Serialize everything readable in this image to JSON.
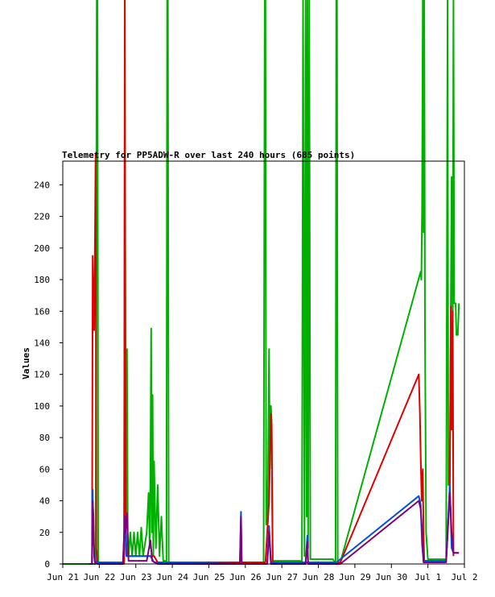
{
  "chart_data": {
    "type": "line",
    "title": "Telemetry for PP5ADW-R over last 240 hours (685 points)",
    "xlabel": "",
    "ylabel": "Values",
    "ylim": [
      0,
      255
    ],
    "y_ticks": [
      0,
      20,
      40,
      60,
      80,
      100,
      120,
      140,
      160,
      180,
      200,
      220,
      240
    ],
    "x_ticks": [
      "Jun 21",
      "Jun 22",
      "Jun 23",
      "Jun 24",
      "Jun 25",
      "Jun 26",
      "Jun 27",
      "Jun 28",
      "Jun 29",
      "Jun 30",
      "Jul 1",
      "Jul 2"
    ],
    "x_unit": "days since Jun 21 00:00",
    "xlim": [
      0,
      11
    ],
    "grid": false,
    "legend": "none",
    "series": [
      {
        "color": "#00b000",
        "points": [
          [
            0.0,
            0
          ],
          [
            0.85,
            0
          ],
          [
            0.9,
            0
          ],
          [
            0.93,
            400
          ],
          [
            0.95,
            400
          ],
          [
            0.97,
            0
          ],
          [
            1.6,
            0
          ],
          [
            1.68,
            0
          ],
          [
            1.7,
            400
          ],
          [
            1.72,
            100
          ],
          [
            1.74,
            30
          ],
          [
            1.76,
            136
          ],
          [
            1.78,
            20
          ],
          [
            1.8,
            5
          ],
          [
            1.85,
            20
          ],
          [
            1.9,
            5
          ],
          [
            1.95,
            20
          ],
          [
            2.0,
            5
          ],
          [
            2.05,
            20
          ],
          [
            2.1,
            5
          ],
          [
            2.15,
            23
          ],
          [
            2.2,
            5
          ],
          [
            2.3,
            20
          ],
          [
            2.35,
            45
          ],
          [
            2.38,
            10
          ],
          [
            2.4,
            55
          ],
          [
            2.42,
            149
          ],
          [
            2.44,
            20
          ],
          [
            2.46,
            107
          ],
          [
            2.48,
            5
          ],
          [
            2.5,
            65
          ],
          [
            2.55,
            10
          ],
          [
            2.6,
            50
          ],
          [
            2.65,
            5
          ],
          [
            2.7,
            30
          ],
          [
            2.72,
            18
          ],
          [
            2.75,
            2
          ],
          [
            2.8,
            2
          ],
          [
            2.84,
            0
          ],
          [
            2.86,
            400
          ],
          [
            2.88,
            400
          ],
          [
            2.9,
            0
          ],
          [
            5.4,
            0
          ],
          [
            5.5,
            0
          ],
          [
            5.53,
            400
          ],
          [
            5.55,
            400
          ],
          [
            5.57,
            25
          ],
          [
            5.6,
            30
          ],
          [
            5.62,
            55
          ],
          [
            5.65,
            136
          ],
          [
            5.67,
            60
          ],
          [
            5.7,
            100
          ],
          [
            5.72,
            90
          ],
          [
            5.75,
            2
          ],
          [
            6.5,
            2
          ],
          [
            6.55,
            0
          ],
          [
            6.58,
            400
          ],
          [
            6.62,
            5
          ],
          [
            6.65,
            400
          ],
          [
            6.68,
            30
          ],
          [
            6.7,
            400
          ],
          [
            6.72,
            10
          ],
          [
            6.75,
            400
          ],
          [
            6.78,
            3
          ],
          [
            7.4,
            3
          ],
          [
            7.47,
            0
          ],
          [
            7.49,
            400
          ],
          [
            7.51,
            400
          ],
          [
            7.53,
            0
          ],
          [
            7.6,
            1
          ],
          [
            9.8,
            185
          ],
          [
            9.82,
            180
          ],
          [
            9.84,
            225
          ],
          [
            9.86,
            400
          ],
          [
            9.88,
            210
          ],
          [
            9.9,
            400
          ],
          [
            9.92,
            150
          ],
          [
            9.95,
            20
          ],
          [
            10.0,
            3
          ],
          [
            10.5,
            3
          ],
          [
            10.54,
            400
          ],
          [
            10.56,
            50
          ],
          [
            10.6,
            60
          ],
          [
            10.65,
            245
          ],
          [
            10.68,
            145
          ],
          [
            10.7,
            400
          ],
          [
            10.72,
            165
          ],
          [
            10.76,
            165
          ],
          [
            10.78,
            145
          ],
          [
            10.82,
            145
          ],
          [
            10.85,
            165
          ]
        ]
      },
      {
        "color": "#e00000",
        "points": [
          [
            0.72,
            0
          ],
          [
            0.8,
            0
          ],
          [
            0.82,
            195
          ],
          [
            0.84,
            160
          ],
          [
            0.86,
            148
          ],
          [
            0.88,
            200
          ],
          [
            0.9,
            260
          ],
          [
            0.92,
            10
          ],
          [
            0.95,
            1
          ],
          [
            1.68,
            1
          ],
          [
            1.7,
            400
          ],
          [
            1.72,
            22
          ],
          [
            1.76,
            5
          ],
          [
            2.5,
            5
          ],
          [
            2.6,
            1
          ],
          [
            5.55,
            1
          ],
          [
            5.65,
            40
          ],
          [
            5.7,
            95
          ],
          [
            5.72,
            88
          ],
          [
            5.75,
            1
          ],
          [
            7.5,
            1
          ],
          [
            7.6,
            1
          ],
          [
            9.75,
            120
          ],
          [
            9.78,
            95
          ],
          [
            9.8,
            70
          ],
          [
            9.83,
            40
          ],
          [
            9.86,
            60
          ],
          [
            9.88,
            20
          ],
          [
            9.9,
            2
          ],
          [
            10.5,
            2
          ],
          [
            10.55,
            25
          ],
          [
            10.6,
            50
          ],
          [
            10.63,
            163
          ],
          [
            10.65,
            85
          ],
          [
            10.68,
            160
          ],
          [
            10.7,
            5
          ]
        ]
      },
      {
        "color": "#0050e0",
        "points": [
          [
            0.72,
            0
          ],
          [
            0.8,
            0
          ],
          [
            0.82,
            47
          ],
          [
            0.84,
            15
          ],
          [
            0.86,
            10
          ],
          [
            0.88,
            2
          ],
          [
            0.95,
            1
          ],
          [
            1.65,
            1
          ],
          [
            1.7,
            28
          ],
          [
            1.74,
            5
          ],
          [
            2.4,
            5
          ],
          [
            2.5,
            1
          ],
          [
            4.85,
            0
          ],
          [
            4.88,
            33
          ],
          [
            4.9,
            0
          ],
          [
            5.6,
            0
          ],
          [
            5.65,
            24
          ],
          [
            5.7,
            1
          ],
          [
            6.65,
            1
          ],
          [
            6.7,
            18
          ],
          [
            6.72,
            1
          ],
          [
            7.5,
            1
          ],
          [
            7.6,
            3
          ],
          [
            9.75,
            43
          ],
          [
            9.8,
            38
          ],
          [
            9.84,
            12
          ],
          [
            9.88,
            2
          ],
          [
            10.5,
            2
          ],
          [
            10.6,
            50
          ],
          [
            10.65,
            10
          ],
          [
            10.7,
            7
          ],
          [
            10.85,
            7
          ]
        ]
      },
      {
        "color": "#800080",
        "points": [
          [
            0.72,
            0
          ],
          [
            0.8,
            0
          ],
          [
            0.82,
            40
          ],
          [
            0.84,
            30
          ],
          [
            0.86,
            5
          ],
          [
            0.88,
            1
          ],
          [
            0.95,
            0
          ],
          [
            1.65,
            0
          ],
          [
            1.7,
            30
          ],
          [
            1.72,
            20
          ],
          [
            1.76,
            32
          ],
          [
            1.8,
            2
          ],
          [
            2.3,
            2
          ],
          [
            2.4,
            15
          ],
          [
            2.45,
            2
          ],
          [
            2.6,
            0
          ],
          [
            4.85,
            0
          ],
          [
            4.88,
            30
          ],
          [
            4.9,
            0
          ],
          [
            5.6,
            0
          ],
          [
            5.65,
            20
          ],
          [
            5.7,
            0
          ],
          [
            6.65,
            0
          ],
          [
            6.7,
            14
          ],
          [
            6.72,
            0
          ],
          [
            7.5,
            0
          ],
          [
            7.6,
            0
          ],
          [
            9.75,
            40
          ],
          [
            9.8,
            35
          ],
          [
            9.84,
            22
          ],
          [
            9.88,
            1
          ],
          [
            10.5,
            1
          ],
          [
            10.6,
            45
          ],
          [
            10.65,
            20
          ],
          [
            10.7,
            7
          ],
          [
            10.85,
            7
          ]
        ]
      }
    ]
  }
}
